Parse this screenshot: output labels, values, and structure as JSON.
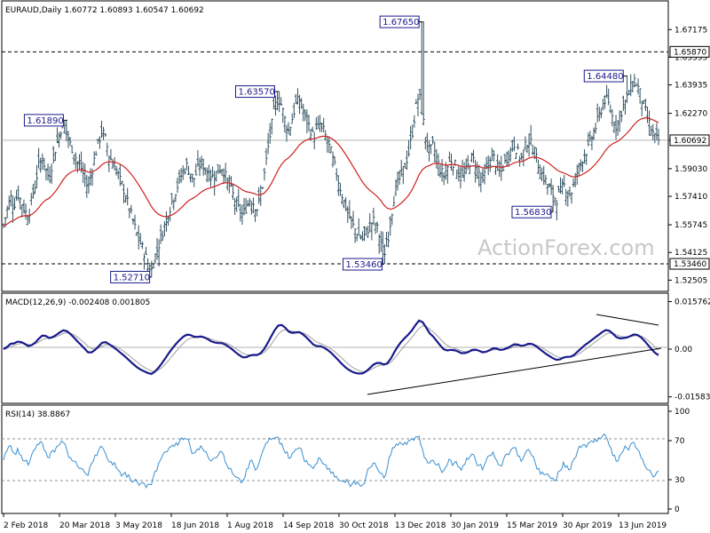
{
  "chart_data": [
    {
      "panel": "price",
      "type": "ohlc",
      "title": "EURAUD,Daily 1.60772 1.60893 1.60547 1.60692",
      "watermark": "ActionForex.com",
      "ylim": [
        1.519,
        1.688
      ],
      "y_ticks": [
        "1.67175",
        "1.65555",
        "1.63935",
        "1.62270",
        "1.60692",
        "1.59030",
        "1.57410",
        "1.55745",
        "1.54125",
        "1.52505"
      ],
      "current_price_label": "1.60692",
      "horizontal_lines": [
        {
          "value": 1.6587,
          "label": "1.65870"
        },
        {
          "value": 1.5346,
          "label": "1.53460"
        },
        {
          "value": 1.60692,
          "label": ""
        }
      ],
      "annotations": [
        {
          "label": "1.61890",
          "value": 1.6189,
          "bar": 18
        },
        {
          "label": "1.52710",
          "value": 1.5271,
          "bar": 42
        },
        {
          "label": "1.63570",
          "value": 1.6357,
          "bar": 78
        },
        {
          "label": "1.67650",
          "value": 1.6765,
          "bar": 119
        },
        {
          "label": "1.53460",
          "value": 1.5346,
          "bar": 108
        },
        {
          "label": "1.56830",
          "value": 1.5683,
          "bar": 156
        },
        {
          "label": "1.64480",
          "value": 1.6448,
          "bar": 177
        }
      ],
      "x_labels": [
        "2 Feb 2018",
        "20 Mar 2018",
        "3 May 2018",
        "18 Jun 2018",
        "1 Aug 2018",
        "14 Sep 2018",
        "30 Oct 2018",
        "13 Dec 2018",
        "30 Jan 2019",
        "15 Mar 2019",
        "30 Apr 2019",
        "13 Jun 2019"
      ],
      "closes": [
        1.557,
        1.566,
        1.574,
        1.569,
        1.576,
        1.571,
        1.566,
        1.562,
        1.572,
        1.581,
        1.592,
        1.597,
        1.59,
        1.584,
        1.596,
        1.604,
        1.612,
        1.617,
        1.611,
        1.604,
        1.6,
        1.594,
        1.591,
        1.585,
        1.579,
        1.588,
        1.598,
        1.606,
        1.613,
        1.607,
        1.598,
        1.594,
        1.59,
        1.584,
        1.579,
        1.572,
        1.565,
        1.558,
        1.551,
        1.546,
        1.541,
        1.535,
        1.531,
        1.539,
        1.545,
        1.552,
        1.559,
        1.566,
        1.572,
        1.578,
        1.584,
        1.589,
        1.592,
        1.588,
        1.584,
        1.589,
        1.594,
        1.591,
        1.588,
        1.585,
        1.587,
        1.589,
        1.591,
        1.586,
        1.581,
        1.576,
        1.57,
        1.566,
        1.563,
        1.568,
        1.573,
        1.57,
        1.567,
        1.574,
        1.586,
        1.601,
        1.614,
        1.626,
        1.632,
        1.627,
        1.618,
        1.612,
        1.62,
        1.628,
        1.631,
        1.624,
        1.619,
        1.614,
        1.609,
        1.613,
        1.617,
        1.612,
        1.606,
        1.6,
        1.592,
        1.584,
        1.576,
        1.569,
        1.563,
        1.558,
        1.554,
        1.551,
        1.549,
        1.553,
        1.557,
        1.56,
        1.556,
        1.549,
        1.54,
        1.547,
        1.561,
        1.575,
        1.582,
        1.587,
        1.592,
        1.599,
        1.61,
        1.625,
        1.634,
        1.621,
        1.607,
        1.6,
        1.604,
        1.596,
        1.59,
        1.586,
        1.591,
        1.596,
        1.593,
        1.589,
        1.584,
        1.588,
        1.592,
        1.597,
        1.593,
        1.588,
        1.583,
        1.589,
        1.594,
        1.598,
        1.592,
        1.587,
        1.592,
        1.597,
        1.601,
        1.605,
        1.6,
        1.596,
        1.602,
        1.608,
        1.604,
        1.598,
        1.592,
        1.587,
        1.583,
        1.579,
        1.575,
        1.572,
        1.576,
        1.581,
        1.578,
        1.575,
        1.581,
        1.589,
        1.594,
        1.599,
        1.602,
        1.608,
        1.614,
        1.62,
        1.627,
        1.632,
        1.627,
        1.62,
        1.615,
        1.621,
        1.627,
        1.631,
        1.637,
        1.643,
        1.639,
        1.633,
        1.626,
        1.619,
        1.613,
        1.608,
        1.607
      ]
    },
    {
      "panel": "macd",
      "type": "line",
      "title": "MACD(12,26,9) -0.002408 0.001805",
      "ylim": [
        -0.0168,
        0.0168
      ],
      "y_ticks": [
        "0.015762",
        "0.00",
        "-0.015834"
      ]
    },
    {
      "panel": "rsi",
      "type": "line",
      "title": "RSI(14) 38.8867",
      "ylim": [
        0,
        100
      ],
      "y_ticks": [
        "100",
        "70",
        "30",
        "0"
      ],
      "levels": [
        70,
        30
      ]
    }
  ],
  "colors": {
    "price_bars": "#2f4f5f",
    "moving_average": "#d02020",
    "macd": "#1a1a8c",
    "signal": "#a0a0a0",
    "rsi": "#3a8fd0",
    "label": "#1a1a8c"
  }
}
